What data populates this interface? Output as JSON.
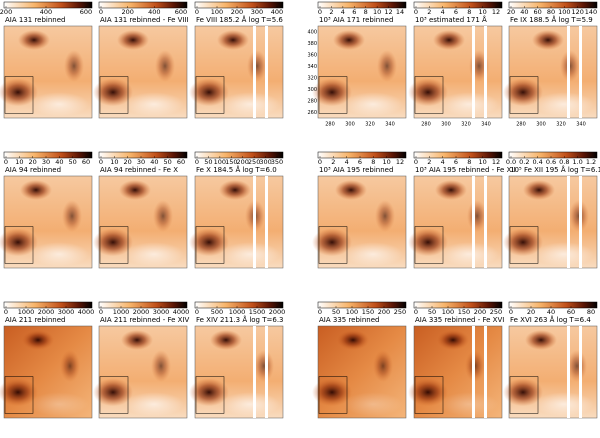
{
  "panels": [
    {
      "title": "AIA 131 rebinned",
      "ticks": [
        "200",
        "400",
        "600"
      ]
    },
    {
      "title": "AIA 131 rebinned - Fe VIII",
      "ticks": [
        "0",
        "200",
        "400",
        "600"
      ]
    },
    {
      "title": "Fe VIII 185.2 Å log T=5.6",
      "ticks": [
        "0",
        "100",
        "200",
        "300",
        "400"
      ]
    },
    {
      "title": "10³ AIA 171 rebinned",
      "ticks": [
        "0",
        "2",
        "4",
        "6",
        "8",
        "10",
        "12",
        "14"
      ]
    },
    {
      "title": "10³ estimated 171 Å",
      "ticks": [
        "0",
        "2",
        "4",
        "6",
        "8",
        "10",
        "12"
      ]
    },
    {
      "title": "Fe IX 188.5 Å log T=5.9",
      "ticks": [
        "20",
        "40",
        "60",
        "80",
        "100",
        "120",
        "140"
      ]
    },
    {
      "title": "AIA 94 rebinned",
      "ticks": [
        "0",
        "10",
        "20",
        "30",
        "40",
        "50",
        "60"
      ]
    },
    {
      "title": "AIA 94 rebinned - Fe X",
      "ticks": [
        "0",
        "10",
        "20",
        "30",
        "40",
        "50",
        "60"
      ]
    },
    {
      "title": "Fe X 184.5 Å log T=6.0",
      "ticks": [
        "0",
        "50",
        "100",
        "150",
        "200",
        "250",
        "300",
        "350"
      ]
    },
    {
      "title": "10³ AIA 195 rebinned",
      "ticks": [
        "0",
        "2",
        "4",
        "6",
        "8",
        "10",
        "12"
      ]
    },
    {
      "title": "10³ AIA 195 rebinned - Fe XII",
      "ticks": [
        "0",
        "2",
        "4",
        "6",
        "8",
        "10",
        "12"
      ]
    },
    {
      "title": "10⁵ Fe XII 195 Å log T=6.1",
      "ticks": [
        "0.0",
        "0.2",
        "0.4",
        "0.6",
        "0.8",
        "1.0",
        "1.2"
      ]
    },
    {
      "title": "AIA 211 rebinned",
      "ticks": [
        "0",
        "1000",
        "2000",
        "3000",
        "4000"
      ]
    },
    {
      "title": "AIA 211 rebinned - Fe XIV",
      "ticks": [
        "0",
        "1000",
        "2000",
        "3000",
        "4000"
      ]
    },
    {
      "title": "Fe XIV 211.3 Å log T=6.3",
      "ticks": [
        "0",
        "500",
        "1000",
        "1500",
        "2000"
      ]
    },
    {
      "title": "AIA 335 rebinned",
      "ticks": [
        "0",
        "50",
        "100",
        "150",
        "200",
        "250"
      ]
    },
    {
      "title": "AIA 335 rebinned - Fe XVI",
      "ticks": [
        "0",
        "50",
        "100",
        "150",
        "200",
        "250"
      ]
    },
    {
      "title": "Fe XVI 263 Å log T=6.4",
      "ticks": [
        "0",
        "20",
        "40",
        "60",
        "80"
      ]
    }
  ],
  "axes": {
    "yticks": [
      "400",
      "380",
      "360",
      "340",
      "320",
      "300",
      "280",
      "260"
    ],
    "xticks": [
      "280",
      "300",
      "320",
      "340"
    ]
  }
}
